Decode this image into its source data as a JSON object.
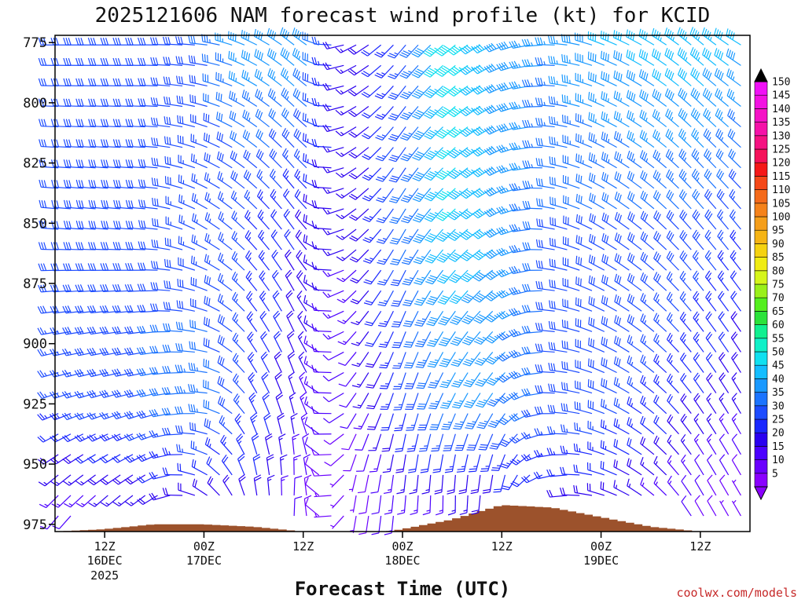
{
  "chart_data": {
    "type": "wind-barb profile (time-height)",
    "title": "2025121606 NAM forecast wind profile (kt) for KCID",
    "xlabel": "Forecast Time (UTC)",
    "ylabel": "",
    "units": "kt",
    "credit": "coolwx.com/models",
    "y_axis": {
      "ticks": [
        775,
        800,
        825,
        850,
        875,
        900,
        925,
        950,
        975
      ],
      "range_hPa": [
        978,
        772
      ],
      "inverted": true
    },
    "x_axis": {
      "ticks": [
        {
          "hour": 12,
          "label": "12Z",
          "date": "16DEC",
          "year": "2025"
        },
        {
          "hour": 24,
          "label": "00Z",
          "date": "17DEC",
          "year": ""
        },
        {
          "hour": 36,
          "label": "12Z",
          "date": "",
          "year": ""
        },
        {
          "hour": 48,
          "label": "00Z",
          "date": "18DEC",
          "year": ""
        },
        {
          "hour": 60,
          "label": "12Z",
          "date": "",
          "year": ""
        },
        {
          "hour": 72,
          "label": "00Z",
          "date": "19DEC",
          "year": ""
        },
        {
          "hour": 84,
          "label": "12Z",
          "date": "",
          "year": ""
        }
      ],
      "range_forecast_hours": [
        6,
        90
      ]
    },
    "colorbar": {
      "levels": [
        5,
        10,
        15,
        20,
        25,
        30,
        35,
        40,
        45,
        50,
        55,
        60,
        65,
        70,
        75,
        80,
        85,
        90,
        95,
        100,
        105,
        110,
        115,
        120,
        125,
        130,
        135,
        140,
        145,
        150
      ],
      "colors": [
        "#8a00ff",
        "#6a00ff",
        "#4b00ff",
        "#2a00f0",
        "#1a28ff",
        "#1d4cff",
        "#1c74ff",
        "#1a99ff",
        "#13bdff",
        "#10e0f0",
        "#10f0c8",
        "#10f090",
        "#2be23a",
        "#54ef1e",
        "#9af01a",
        "#d6f51a",
        "#f0ec12",
        "#f5d210",
        "#f5b414",
        "#f59e1a",
        "#f5821a",
        "#f56a1a",
        "#f54818",
        "#f51818",
        "#f5125a",
        "#f51282",
        "#f512a8",
        "#f512c6",
        "#f212e2",
        "#f012f6"
      ]
    },
    "terrain_pressure_hPa": [
      {
        "h": 6,
        "p": 978
      },
      {
        "h": 12,
        "p": 977
      },
      {
        "h": 18,
        "p": 975
      },
      {
        "h": 24,
        "p": 975
      },
      {
        "h": 30,
        "p": 976
      },
      {
        "h": 36,
        "p": 978
      },
      {
        "h": 42,
        "p": 980
      },
      {
        "h": 48,
        "p": 977
      },
      {
        "h": 54,
        "p": 973
      },
      {
        "h": 60,
        "p": 967
      },
      {
        "h": 66,
        "p": 968
      },
      {
        "h": 72,
        "p": 972
      },
      {
        "h": 78,
        "p": 976
      },
      {
        "h": 84,
        "p": 978
      },
      {
        "h": 90,
        "p": 979
      }
    ],
    "wind_key_points": [
      {
        "h": 6,
        "p": 775,
        "spd": 30,
        "dir": 270
      },
      {
        "h": 6,
        "p": 850,
        "spd": 30,
        "dir": 275
      },
      {
        "h": 6,
        "p": 925,
        "spd": 25,
        "dir": 250
      },
      {
        "h": 6,
        "p": 970,
        "spd": 10,
        "dir": 220
      },
      {
        "h": 18,
        "p": 775,
        "spd": 30,
        "dir": 270
      },
      {
        "h": 18,
        "p": 850,
        "spd": 30,
        "dir": 275
      },
      {
        "h": 18,
        "p": 925,
        "spd": 30,
        "dir": 255
      },
      {
        "h": 18,
        "p": 970,
        "spd": 15,
        "dir": 230
      },
      {
        "h": 24,
        "p": 775,
        "spd": 30,
        "dir": 275
      },
      {
        "h": 24,
        "p": 850,
        "spd": 25,
        "dir": 300
      },
      {
        "h": 24,
        "p": 925,
        "spd": 35,
        "dir": 270
      },
      {
        "h": 24,
        "p": 960,
        "spd": 20,
        "dir": 300
      },
      {
        "h": 30,
        "p": 775,
        "spd": 40,
        "dir": 295
      },
      {
        "h": 30,
        "p": 850,
        "spd": 25,
        "dir": 315
      },
      {
        "h": 30,
        "p": 925,
        "spd": 25,
        "dir": 330
      },
      {
        "h": 30,
        "p": 960,
        "spd": 20,
        "dir": 350
      },
      {
        "h": 36,
        "p": 775,
        "spd": 40,
        "dir": 310
      },
      {
        "h": 36,
        "p": 850,
        "spd": 20,
        "dir": 325
      },
      {
        "h": 36,
        "p": 925,
        "spd": 15,
        "dir": 345
      },
      {
        "h": 36,
        "p": 960,
        "spd": 10,
        "dir": 5
      },
      {
        "h": 42,
        "p": 775,
        "spd": 15,
        "dir": 245
      },
      {
        "h": 42,
        "p": 850,
        "spd": 15,
        "dir": 235
      },
      {
        "h": 42,
        "p": 925,
        "spd": 10,
        "dir": 215
      },
      {
        "h": 42,
        "p": 960,
        "spd": 5,
        "dir": 190
      },
      {
        "h": 48,
        "p": 775,
        "spd": 25,
        "dir": 220
      },
      {
        "h": 48,
        "p": 850,
        "spd": 30,
        "dir": 210
      },
      {
        "h": 48,
        "p": 925,
        "spd": 25,
        "dir": 195
      },
      {
        "h": 48,
        "p": 960,
        "spd": 15,
        "dir": 185
      },
      {
        "h": 54,
        "p": 775,
        "spd": 50,
        "dir": 230
      },
      {
        "h": 54,
        "p": 850,
        "spd": 45,
        "dir": 225
      },
      {
        "h": 54,
        "p": 925,
        "spd": 35,
        "dir": 205
      },
      {
        "h": 54,
        "p": 960,
        "spd": 15,
        "dir": 180
      },
      {
        "h": 60,
        "p": 775,
        "spd": 40,
        "dir": 245
      },
      {
        "h": 60,
        "p": 850,
        "spd": 40,
        "dir": 240
      },
      {
        "h": 60,
        "p": 925,
        "spd": 35,
        "dir": 215
      },
      {
        "h": 60,
        "p": 955,
        "spd": 20,
        "dir": 190
      },
      {
        "h": 66,
        "p": 775,
        "spd": 35,
        "dir": 270
      },
      {
        "h": 66,
        "p": 850,
        "spd": 30,
        "dir": 280
      },
      {
        "h": 66,
        "p": 925,
        "spd": 30,
        "dir": 270
      },
      {
        "h": 66,
        "p": 955,
        "spd": 20,
        "dir": 255
      },
      {
        "h": 72,
        "p": 775,
        "spd": 40,
        "dir": 290
      },
      {
        "h": 72,
        "p": 850,
        "spd": 30,
        "dir": 300
      },
      {
        "h": 72,
        "p": 925,
        "spd": 30,
        "dir": 290
      },
      {
        "h": 72,
        "p": 960,
        "spd": 20,
        "dir": 285
      },
      {
        "h": 84,
        "p": 775,
        "spd": 45,
        "dir": 310
      },
      {
        "h": 84,
        "p": 850,
        "spd": 30,
        "dir": 320
      },
      {
        "h": 84,
        "p": 925,
        "spd": 20,
        "dir": 325
      },
      {
        "h": 84,
        "p": 965,
        "spd": 10,
        "dir": 330
      },
      {
        "h": 90,
        "p": 775,
        "spd": 40,
        "dir": 300
      },
      {
        "h": 90,
        "p": 850,
        "spd": 25,
        "dir": 320
      },
      {
        "h": 90,
        "p": 925,
        "spd": 15,
        "dir": 330
      },
      {
        "h": 90,
        "p": 970,
        "spd": 5,
        "dir": 330
      }
    ]
  }
}
